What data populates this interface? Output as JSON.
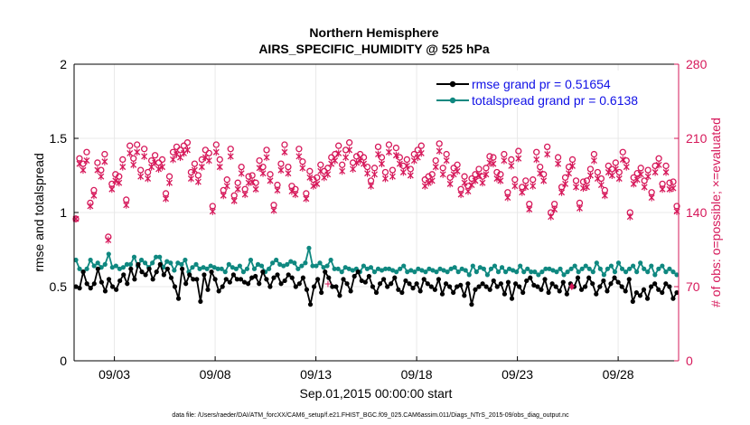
{
  "chart_data": {
    "type": "line",
    "title": "Northern Hemisphere",
    "subtitle": "AIRS_SPECIFIC_HUMIDITY @ 525 hPa",
    "xlabel": "Sep.01,2015 00:00:00 start",
    "ylabel_left": "rmse and totalspread",
    "ylabel_right": "# of obs: o=possible; ×=evaluated",
    "footer": "data file: /Users/raeder/DAI/ATM_forcXX/CAM6_setup/f.e21.FHIST_BGC.f09_025.CAM6assim.011/Diags_NTrS_2015-09/obs_diag_output.nc",
    "x_ticks": [
      "09/03",
      "09/08",
      "09/13",
      "09/18",
      "09/23",
      "09/28"
    ],
    "x_tick_days": [
      3,
      8,
      13,
      18,
      23,
      28
    ],
    "xlim": [
      1,
      31
    ],
    "ylim_left": [
      0,
      2
    ],
    "y_ticks_left": [
      "0",
      "0.5",
      "1",
      "1.5",
      "2"
    ],
    "ylim_right": [
      0,
      280
    ],
    "y_ticks_right": [
      "0",
      "70",
      "140",
      "210",
      "280"
    ],
    "colors": {
      "rmse": "#000000",
      "spread": "#0f8880",
      "obs": "#d6185a",
      "legend_text": "#1010e6",
      "grid": "#e8e8e8"
    },
    "series": [
      {
        "name": "rmse grand pr = 0.51654",
        "color": "#000000",
        "axis": "left",
        "values": [
          0.5,
          0.49,
          0.6,
          0.52,
          0.49,
          0.52,
          0.62,
          0.53,
          0.47,
          0.55,
          0.5,
          0.48,
          0.54,
          0.58,
          0.52,
          0.62,
          0.55,
          0.65,
          0.6,
          0.58,
          0.62,
          0.55,
          0.6,
          0.65,
          0.58,
          0.62,
          0.56,
          0.5,
          0.42,
          0.62,
          0.52,
          0.58,
          0.55,
          0.55,
          0.4,
          0.58,
          0.48,
          0.6,
          0.55,
          0.47,
          0.5,
          0.55,
          0.53,
          0.58,
          0.55,
          0.55,
          0.53,
          0.52,
          0.56,
          0.57,
          0.52,
          0.6,
          0.55,
          0.5,
          0.56,
          0.58,
          0.52,
          0.54,
          0.58,
          0.56,
          0.5,
          0.52,
          0.56,
          0.48,
          0.38,
          0.5,
          0.55,
          0.46,
          0.6,
          0.56,
          0.5,
          0.5,
          0.44,
          0.55,
          0.52,
          0.47,
          0.57,
          0.6,
          0.54,
          0.53,
          0.57,
          0.5,
          0.46,
          0.52,
          0.55,
          0.5,
          0.52,
          0.56,
          0.48,
          0.46,
          0.54,
          0.52,
          0.49,
          0.52,
          0.47,
          0.55,
          0.52,
          0.5,
          0.48,
          0.55,
          0.45,
          0.52,
          0.5,
          0.46,
          0.5,
          0.51,
          0.44,
          0.52,
          0.38,
          0.48,
          0.5,
          0.52,
          0.5,
          0.48,
          0.54,
          0.5,
          0.52,
          0.45,
          0.53,
          0.42,
          0.52,
          0.5,
          0.46,
          0.54,
          0.56,
          0.51,
          0.5,
          0.48,
          0.55,
          0.46,
          0.52,
          0.5,
          0.47,
          0.53,
          0.45,
          0.52,
          0.5,
          0.56,
          0.48,
          0.5,
          0.56,
          0.52,
          0.45,
          0.5,
          0.54,
          0.47,
          0.52,
          0.56,
          0.53,
          0.5,
          0.47,
          0.55,
          0.4,
          0.46,
          0.44,
          0.48,
          0.42,
          0.5,
          0.52,
          0.48,
          0.46,
          0.52,
          0.5,
          0.42,
          0.46
        ]
      },
      {
        "name": "totalspread grand pr = 0.6138",
        "color": "#0f8880",
        "axis": "left",
        "values": [
          0.68,
          0.62,
          0.6,
          0.62,
          0.68,
          0.64,
          0.66,
          0.63,
          0.65,
          0.72,
          0.63,
          0.64,
          0.62,
          0.63,
          0.65,
          0.65,
          0.7,
          0.64,
          0.68,
          0.66,
          0.63,
          0.66,
          0.7,
          0.7,
          0.63,
          0.67,
          0.66,
          0.61,
          0.66,
          0.65,
          0.68,
          0.6,
          0.63,
          0.65,
          0.62,
          0.63,
          0.62,
          0.64,
          0.63,
          0.62,
          0.62,
          0.6,
          0.65,
          0.63,
          0.62,
          0.64,
          0.6,
          0.62,
          0.68,
          0.62,
          0.65,
          0.64,
          0.6,
          0.62,
          0.66,
          0.68,
          0.65,
          0.64,
          0.65,
          0.67,
          0.66,
          0.62,
          0.64,
          0.66,
          0.76,
          0.64,
          0.64,
          0.66,
          0.63,
          0.64,
          0.68,
          0.62,
          0.62,
          0.6,
          0.63,
          0.62,
          0.61,
          0.62,
          0.6,
          0.64,
          0.62,
          0.63,
          0.6,
          0.62,
          0.61,
          0.62,
          0.62,
          0.61,
          0.6,
          0.62,
          0.64,
          0.6,
          0.61,
          0.6,
          0.62,
          0.61,
          0.6,
          0.62,
          0.61,
          0.6,
          0.62,
          0.61,
          0.6,
          0.62,
          0.63,
          0.6,
          0.62,
          0.61,
          0.58,
          0.64,
          0.6,
          0.63,
          0.62,
          0.58,
          0.62,
          0.64,
          0.6,
          0.63,
          0.6,
          0.62,
          0.61,
          0.6,
          0.64,
          0.6,
          0.62,
          0.6,
          0.6,
          0.58,
          0.6,
          0.62,
          0.62,
          0.61,
          0.6,
          0.62,
          0.58,
          0.6,
          0.62,
          0.64,
          0.6,
          0.62,
          0.64,
          0.62,
          0.6,
          0.66,
          0.62,
          0.58,
          0.62,
          0.64,
          0.6,
          0.66,
          0.62,
          0.6,
          0.62,
          0.64,
          0.6,
          0.66,
          0.62,
          0.6,
          0.64,
          0.58,
          0.62,
          0.64,
          0.6,
          0.62,
          0.6,
          0.58
        ]
      },
      {
        "name": "possible",
        "color": "#d6185a",
        "axis": "right",
        "marker": "circle",
        "values": [
          134,
          191,
          186,
          197,
          149,
          161,
          187,
          180,
          195,
          117,
          167,
          176,
          174,
          190,
          152,
          203,
          191,
          204,
          180,
          200,
          178,
          189,
          194,
          187,
          190,
          158,
          174,
          197,
          202,
          199,
          203,
          206,
          178,
          186,
          175,
          190,
          199,
          196,
          146,
          204,
          190,
          161,
          171,
          200,
          156,
          168,
          183,
          162,
          174,
          175,
          168,
          189,
          183,
          199,
          176,
          147,
          166,
          186,
          204,
          183,
          165,
          162,
          200,
          188,
          158,
          179,
          171,
          173,
          185,
          179,
          182,
          192,
          195,
          203,
          185,
          199,
          206,
          187,
          193,
          195,
          192,
          183,
          170,
          182,
          202,
          192,
          178,
          204,
          180,
          201,
          192,
          184,
          190,
          181,
          195,
          199,
          203,
          171,
          174,
          176,
          189,
          205,
          182,
          195,
          173,
          182,
          185,
          162,
          174,
          165,
          172,
          176,
          181,
          174,
          182,
          193,
          192,
          178,
          176,
          195,
          159,
          190,
          171,
          198,
          164,
          170,
          148,
          171,
          197,
          183,
          176,
          202,
          140,
          148,
          192,
          164,
          173,
          183,
          190,
          170,
          149,
          169,
          170,
          181,
          195,
          178,
          172,
          161,
          184,
          181,
          187,
          178,
          197,
          189,
          140,
          173,
          177,
          182,
          170,
          180,
          159,
          184,
          191,
          167,
          184,
          168,
          169,
          146
        ]
      },
      {
        "name": "evaluated",
        "color": "#d6185a",
        "axis": "right",
        "marker": "x",
        "values": [
          134,
          186,
          180,
          189,
          146,
          156,
          180,
          174,
          188,
          114,
          162,
          170,
          168,
          183,
          147,
          196,
          185,
          197,
          174,
          193,
          172,
          183,
          187,
          181,
          183,
          153,
          168,
          190,
          195,
          192,
          196,
          199,
          172,
          180,
          169,
          183,
          192,
          189,
          141,
          197,
          183,
          156,
          165,
          193,
          151,
          162,
          177,
          157,
          168,
          169,
          162,
          182,
          177,
          192,
          170,
          142,
          161,
          180,
          197,
          177,
          160,
          157,
          193,
          182,
          153,
          173,
          165,
          167,
          179,
          173,
          176,
          186,
          189,
          196,
          179,
          192,
          199,
          181,
          187,
          189,
          186,
          177,
          165,
          176,
          195,
          186,
          172,
          197,
          174,
          194,
          186,
          178,
          184,
          175,
          189,
          192,
          196,
          165,
          168,
          170,
          183,
          198,
          176,
          189,
          167,
          176,
          179,
          157,
          168,
          160,
          166,
          170,
          175,
          168,
          176,
          187,
          186,
          172,
          170,
          189,
          154,
          184,
          165,
          191,
          159,
          164,
          143,
          165,
          190,
          177,
          170,
          195,
          136,
          143,
          186,
          159,
          167,
          177,
          184,
          164,
          144,
          163,
          164,
          175,
          189,
          172,
          166,
          156,
          178,
          175,
          181,
          172,
          190,
          183,
          136,
          167,
          171,
          176,
          164,
          174,
          154,
          178,
          185,
          162,
          178,
          162,
          163,
          141
        ]
      }
    ],
    "annotations": [
      {
        "text": "+",
        "day": 13.6,
        "value_right": 73,
        "color": "#d6185a"
      },
      {
        "text": "♦",
        "day": 25.7,
        "value_right": 71,
        "color": "#d6185a"
      }
    ]
  }
}
